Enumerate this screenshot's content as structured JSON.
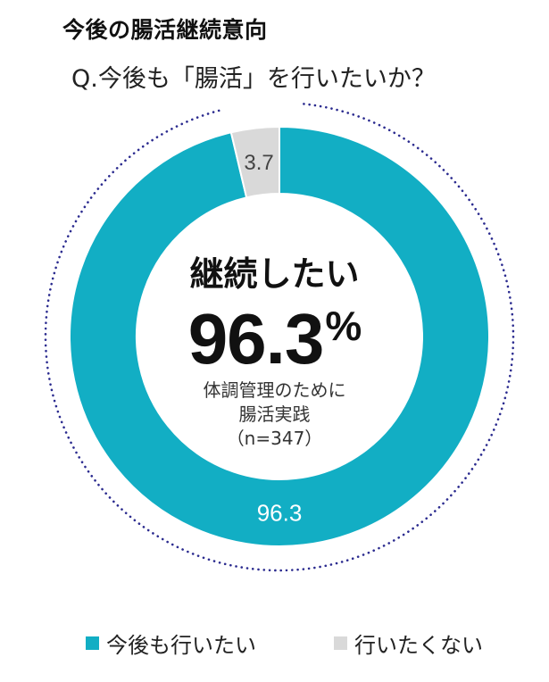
{
  "title": "今後の腸活継続意向",
  "question": "Q.今後も「腸活」を行いたいか？",
  "center": {
    "label": "継続したい",
    "value": "96.3",
    "unit": "%",
    "sub1": "体調管理のために",
    "sub2": "腸活実践",
    "sub3": "（n=347）"
  },
  "colors": {
    "continue": "#12aec4",
    "not": "#d9d9d9",
    "dotted": "#2b2b8f"
  },
  "chart_data": {
    "type": "pie",
    "donut": true,
    "categories": [
      "今後も行いたい",
      "行いたくない"
    ],
    "values": [
      96.3,
      3.7
    ],
    "data_labels": [
      "96.3",
      "3.7"
    ],
    "center_text": "継続したい 96.3%",
    "legend_position": "bottom"
  },
  "legend": [
    {
      "label": "今後も行いたい"
    },
    {
      "label": "行いたくない"
    }
  ]
}
